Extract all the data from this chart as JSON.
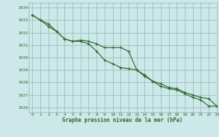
{
  "title": "Graphe pression niveau de la mer (hPa)",
  "bg_color": "#cce8e8",
  "grid_color": "#99bbbb",
  "line_color": "#2d6a2d",
  "xlim": [
    -0.5,
    23
  ],
  "ylim": [
    1025.6,
    1034.4
  ],
  "yticks": [
    1026,
    1027,
    1028,
    1029,
    1030,
    1031,
    1032,
    1033,
    1034
  ],
  "xticks": [
    0,
    1,
    2,
    3,
    4,
    5,
    6,
    7,
    8,
    9,
    10,
    11,
    12,
    13,
    14,
    15,
    16,
    17,
    18,
    19,
    20,
    21,
    22,
    23
  ],
  "series1_x": [
    0,
    1,
    2,
    3,
    4,
    5,
    6,
    7,
    8,
    9,
    10,
    11,
    12,
    13,
    14,
    15,
    16,
    17,
    18,
    19,
    20,
    21,
    22,
    23
  ],
  "series1_y": [
    1033.4,
    1033.0,
    1032.7,
    1032.1,
    1031.5,
    1031.3,
    1031.4,
    1031.3,
    1031.1,
    1030.8,
    1030.8,
    1030.8,
    1030.5,
    1029.0,
    1028.6,
    1028.1,
    1027.9,
    1027.6,
    1027.5,
    1027.2,
    1027.0,
    1026.8,
    1026.7,
    1026.1
  ],
  "series2_x": [
    0,
    1,
    2,
    3,
    4,
    5,
    6,
    7,
    8,
    9,
    10,
    11,
    12,
    13,
    14,
    15,
    16,
    17,
    18,
    19,
    20,
    21,
    22,
    23
  ],
  "series2_y": [
    1033.4,
    1033.0,
    1032.5,
    1032.1,
    1031.5,
    1031.3,
    1031.3,
    1031.1,
    1030.5,
    1029.8,
    1029.5,
    1029.2,
    1029.1,
    1029.0,
    1028.5,
    1028.1,
    1027.7,
    1027.5,
    1027.4,
    1027.1,
    1026.8,
    1026.6,
    1026.1,
    1026.1
  ]
}
